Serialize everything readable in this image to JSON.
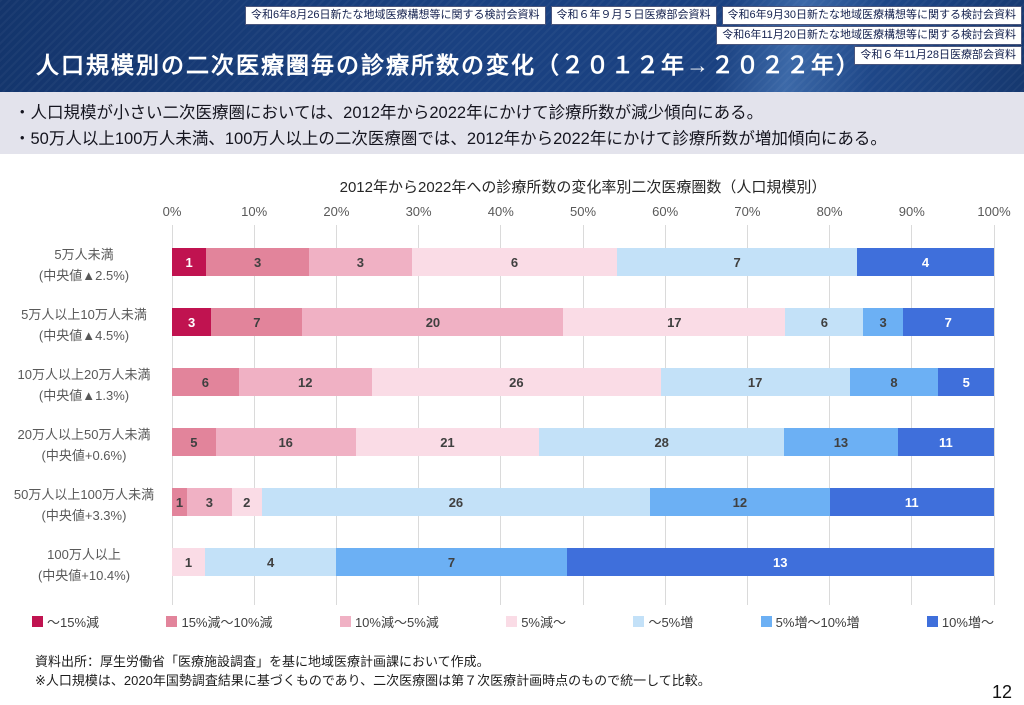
{
  "header": {
    "title": "人口規模別の二次医療圏毎の診療所数の変化（２０１２年→２０２２年）",
    "badges": [
      "令和6年8月26日新たな地域医療構想等に関する検討会資料",
      "令和６年９月５日医療部会資料",
      "令和6年9月30日新たな地域医療構想等に関する検討会資料",
      "令和6年11月20日新たな地域医療構想等に関する検討会資料",
      "令和６年11月28日医療部会資料"
    ]
  },
  "summary": {
    "bullets": [
      "・人口規模が小さい二次医療圏においては、2012年から2022年にかけて診療所数が減少傾向にある。",
      "・50万人以上100万人未満、100万人以上の二次医療圏では、2012年から2022年にかけて診療所数が増加傾向にある。"
    ]
  },
  "chart_data": {
    "type": "bar",
    "stacked": true,
    "percent_stacked": true,
    "title": "2012年から2022年への診療所数の変化率別二次医療圏数（人口規模別）",
    "x_ticks": [
      "0%",
      "10%",
      "20%",
      "30%",
      "40%",
      "50%",
      "60%",
      "70%",
      "80%",
      "90%",
      "100%"
    ],
    "grid": "vertical",
    "legend_position": "bottom",
    "rows": [
      {
        "label": "5万人未満",
        "median": "(中央値▲2.5%)",
        "total": 24
      },
      {
        "label": "5万人以上10万人未満",
        "median": "(中央値▲4.5%)",
        "total": 63
      },
      {
        "label": "10万人以上20万人未満",
        "median": "(中央値▲1.3%)",
        "total": 74
      },
      {
        "label": "20万人以上50万人未満",
        "median": "(中央値+0.6%)",
        "total": 94
      },
      {
        "label": "50万人以上100万人未満",
        "median": "(中央値+3.3%)",
        "total": 55
      },
      {
        "label": "100万人以上",
        "median": "(中央値+10.4%)",
        "total": 25
      }
    ],
    "series": [
      {
        "name": "～15%減",
        "color": "#c01350",
        "label_color": "#ffffff",
        "values": [
          1,
          3,
          0,
          0,
          0,
          0
        ]
      },
      {
        "name": "15%減～10%減",
        "color": "#e2849b",
        "label_color": "#404040",
        "values": [
          3,
          7,
          6,
          5,
          1,
          0
        ]
      },
      {
        "name": "10%減～5%減",
        "color": "#f0b1c4",
        "label_color": "#404040",
        "values": [
          3,
          20,
          12,
          16,
          3,
          0
        ]
      },
      {
        "name": "5%減～",
        "color": "#fadce6",
        "label_color": "#404040",
        "values": [
          6,
          17,
          26,
          21,
          2,
          1
        ]
      },
      {
        "name": "～5%増",
        "color": "#c3e1f8",
        "label_color": "#404040",
        "values": [
          7,
          6,
          17,
          28,
          26,
          4
        ]
      },
      {
        "name": "5%増～10%増",
        "color": "#6cb0f4",
        "label_color": "#404040",
        "values": [
          0,
          3,
          8,
          13,
          12,
          7
        ]
      },
      {
        "name": "10%増～",
        "color": "#3f6fdb",
        "label_color": "#ffffff",
        "values": [
          4,
          7,
          5,
          11,
          11,
          13
        ]
      }
    ]
  },
  "footer": {
    "source": "資料出所：厚生労働省「医療施設調査」を基に地域医療計画課において作成。",
    "note": "※人口規模は、2020年国勢調査結果に基づくものであり、二次医療圏は第７次医療計画時点のもので統一して比較。",
    "page_number": "12"
  }
}
